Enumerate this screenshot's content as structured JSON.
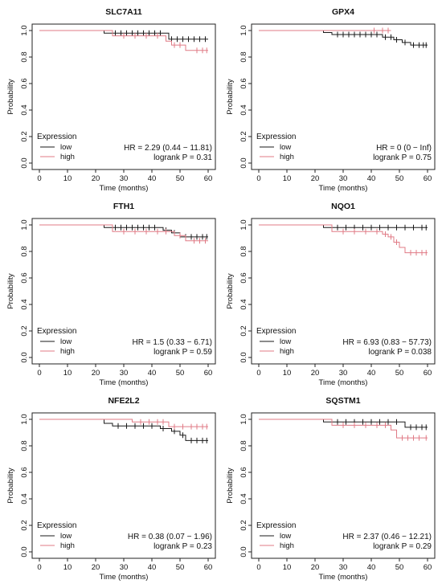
{
  "colors": {
    "low": "#1a1a1a",
    "high": "#e07b86",
    "axis": "#222222"
  },
  "chart_data": [
    {
      "type": "line",
      "title": "SLC7A11",
      "xlabel": "Time (months)",
      "ylabel": "Probability",
      "xlim": [
        0,
        60
      ],
      "ylim": [
        0,
        1
      ],
      "xticks": [
        0,
        10,
        20,
        30,
        40,
        50,
        60
      ],
      "yticks": [
        0.0,
        0.2,
        0.4,
        0.6,
        0.8,
        1.0
      ],
      "legend_title": "Expression",
      "series": [
        {
          "name": "low",
          "color": "#1a1a1a",
          "steps": [
            [
              0,
              1.0
            ],
            [
              23,
              0.98
            ],
            [
              46,
              0.935
            ],
            [
              60,
              0.935
            ]
          ],
          "censor": [
            [
              27,
              0.98
            ],
            [
              29,
              0.98
            ],
            [
              31,
              0.98
            ],
            [
              33,
              0.98
            ],
            [
              35,
              0.98
            ],
            [
              37,
              0.98
            ],
            [
              39,
              0.98
            ],
            [
              41,
              0.98
            ],
            [
              43,
              0.98
            ],
            [
              47,
              0.935
            ],
            [
              49,
              0.935
            ],
            [
              51,
              0.935
            ],
            [
              53,
              0.935
            ],
            [
              55,
              0.935
            ],
            [
              57,
              0.935
            ],
            [
              59,
              0.935
            ]
          ]
        },
        {
          "name": "high",
          "color": "#e07b86",
          "steps": [
            [
              0,
              1.0
            ],
            [
              26,
              0.96
            ],
            [
              45,
              0.92
            ],
            [
              47,
              0.89
            ],
            [
              52,
              0.85
            ],
            [
              60,
              0.85
            ]
          ],
          "censor": [
            [
              30,
              0.96
            ],
            [
              34,
              0.96
            ],
            [
              38,
              0.96
            ],
            [
              42,
              0.96
            ],
            [
              48,
              0.89
            ],
            [
              50,
              0.89
            ],
            [
              56,
              0.85
            ],
            [
              58,
              0.85
            ],
            [
              59.5,
              0.85
            ]
          ]
        }
      ],
      "annotation": [
        "HR = 2.29 (0.44 − 11.81)",
        "logrank P = 0.31"
      ]
    },
    {
      "type": "line",
      "title": "GPX4",
      "xlabel": "Time (months)",
      "ylabel": "Probability",
      "xlim": [
        0,
        60
      ],
      "ylim": [
        0,
        1
      ],
      "xticks": [
        0,
        10,
        20,
        30,
        40,
        50,
        60
      ],
      "yticks": [
        0.0,
        0.2,
        0.4,
        0.6,
        0.8,
        1.0
      ],
      "legend_title": "Expression",
      "series": [
        {
          "name": "low",
          "color": "#1a1a1a",
          "steps": [
            [
              0,
              1.0
            ],
            [
              23,
              0.985
            ],
            [
              26,
              0.97
            ],
            [
              44,
              0.95
            ],
            [
              48,
              0.93
            ],
            [
              51,
              0.91
            ],
            [
              54,
              0.89
            ],
            [
              60,
              0.89
            ]
          ],
          "censor": [
            [
              28,
              0.97
            ],
            [
              30,
              0.97
            ],
            [
              32,
              0.97
            ],
            [
              34,
              0.97
            ],
            [
              36,
              0.97
            ],
            [
              38,
              0.97
            ],
            [
              40,
              0.97
            ],
            [
              42,
              0.97
            ],
            [
              45,
              0.95
            ],
            [
              47,
              0.95
            ],
            [
              49,
              0.93
            ],
            [
              52,
              0.91
            ],
            [
              55,
              0.89
            ],
            [
              57,
              0.89
            ],
            [
              58.5,
              0.89
            ],
            [
              59.5,
              0.89
            ]
          ]
        },
        {
          "name": "high",
          "color": "#e07b86",
          "steps": [
            [
              0,
              1.0
            ],
            [
              47,
              1.0
            ]
          ],
          "censor": [
            [
              41,
              1.0
            ],
            [
              44,
              1.0
            ],
            [
              46,
              1.0
            ]
          ]
        }
      ],
      "annotation": [
        "HR = 0 (0 − Inf)",
        "logrank P = 0.75"
      ]
    },
    {
      "type": "line",
      "title": "FTH1",
      "xlabel": "Time (months)",
      "ylabel": "Probability",
      "xlim": [
        0,
        60
      ],
      "ylim": [
        0,
        1
      ],
      "xticks": [
        0,
        10,
        20,
        30,
        40,
        50,
        60
      ],
      "yticks": [
        0.0,
        0.2,
        0.4,
        0.6,
        0.8,
        1.0
      ],
      "legend_title": "Expression",
      "series": [
        {
          "name": "low",
          "color": "#1a1a1a",
          "steps": [
            [
              0,
              1.0
            ],
            [
              23,
              0.98
            ],
            [
              44,
              0.96
            ],
            [
              47,
              0.94
            ],
            [
              50,
              0.91
            ],
            [
              60,
              0.91
            ]
          ],
          "censor": [
            [
              27,
              0.98
            ],
            [
              29,
              0.98
            ],
            [
              31,
              0.98
            ],
            [
              33,
              0.98
            ],
            [
              35,
              0.98
            ],
            [
              37,
              0.98
            ],
            [
              39,
              0.98
            ],
            [
              41,
              0.98
            ],
            [
              45,
              0.96
            ],
            [
              48,
              0.94
            ],
            [
              52,
              0.91
            ],
            [
              54,
              0.91
            ],
            [
              56,
              0.91
            ],
            [
              58,
              0.91
            ],
            [
              59.5,
              0.91
            ]
          ]
        },
        {
          "name": "high",
          "color": "#e07b86",
          "steps": [
            [
              0,
              1.0
            ],
            [
              26,
              0.95
            ],
            [
              48,
              0.92
            ],
            [
              52,
              0.88
            ],
            [
              60,
              0.88
            ]
          ],
          "censor": [
            [
              30,
              0.95
            ],
            [
              34,
              0.95
            ],
            [
              38,
              0.95
            ],
            [
              42,
              0.95
            ],
            [
              45,
              0.95
            ],
            [
              50,
              0.92
            ],
            [
              55,
              0.88
            ],
            [
              57,
              0.88
            ],
            [
              59,
              0.88
            ]
          ]
        }
      ],
      "annotation": [
        "HR = 1.5 (0.33 − 6.71)",
        "logrank P = 0.59"
      ]
    },
    {
      "type": "line",
      "title": "NQO1",
      "xlabel": "Time (months)",
      "ylabel": "Probability",
      "xlim": [
        0,
        60
      ],
      "ylim": [
        0,
        1
      ],
      "xticks": [
        0,
        10,
        20,
        30,
        40,
        50,
        60
      ],
      "yticks": [
        0.0,
        0.2,
        0.4,
        0.6,
        0.8,
        1.0
      ],
      "legend_title": "Expression",
      "series": [
        {
          "name": "low",
          "color": "#1a1a1a",
          "steps": [
            [
              0,
              1.0
            ],
            [
              23,
              0.98
            ],
            [
              60,
              0.98
            ]
          ],
          "censor": [
            [
              28,
              0.98
            ],
            [
              31,
              0.98
            ],
            [
              34,
              0.98
            ],
            [
              37,
              0.98
            ],
            [
              40,
              0.98
            ],
            [
              43,
              0.98
            ],
            [
              46,
              0.98
            ],
            [
              49,
              0.98
            ],
            [
              52,
              0.98
            ],
            [
              55,
              0.98
            ],
            [
              58,
              0.98
            ],
            [
              59.5,
              0.98
            ]
          ]
        },
        {
          "name": "high",
          "color": "#e07b86",
          "steps": [
            [
              0,
              1.0
            ],
            [
              26,
              0.95
            ],
            [
              44,
              0.93
            ],
            [
              46,
              0.91
            ],
            [
              48,
              0.87
            ],
            [
              50,
              0.83
            ],
            [
              52,
              0.79
            ],
            [
              60,
              0.79
            ]
          ],
          "censor": [
            [
              30,
              0.95
            ],
            [
              34,
              0.95
            ],
            [
              38,
              0.95
            ],
            [
              42,
              0.95
            ],
            [
              45,
              0.93
            ],
            [
              47,
              0.91
            ],
            [
              49,
              0.87
            ],
            [
              54,
              0.79
            ],
            [
              56,
              0.79
            ],
            [
              58,
              0.79
            ],
            [
              59.5,
              0.79
            ]
          ]
        }
      ],
      "annotation": [
        "HR = 6.93 (0.83 − 57.73)",
        "logrank P = 0.038"
      ]
    },
    {
      "type": "line",
      "title": "NFE2L2",
      "xlabel": "Time (months)",
      "ylabel": "Probability",
      "xlim": [
        0,
        60
      ],
      "ylim": [
        0,
        1
      ],
      "xticks": [
        0,
        10,
        20,
        30,
        40,
        50,
        60
      ],
      "yticks": [
        0.0,
        0.2,
        0.4,
        0.6,
        0.8,
        1.0
      ],
      "legend_title": "Expression",
      "series": [
        {
          "name": "low",
          "color": "#1a1a1a",
          "steps": [
            [
              0,
              1.0
            ],
            [
              23,
              0.97
            ],
            [
              26,
              0.95
            ],
            [
              43,
              0.93
            ],
            [
              47,
              0.91
            ],
            [
              50,
              0.88
            ],
            [
              52,
              0.84
            ],
            [
              60,
              0.84
            ]
          ],
          "censor": [
            [
              28,
              0.95
            ],
            [
              31,
              0.95
            ],
            [
              34,
              0.95
            ],
            [
              37,
              0.95
            ],
            [
              40,
              0.95
            ],
            [
              44,
              0.93
            ],
            [
              48,
              0.91
            ],
            [
              51,
              0.88
            ],
            [
              54,
              0.84
            ],
            [
              56,
              0.84
            ],
            [
              58,
              0.84
            ],
            [
              59.5,
              0.84
            ]
          ]
        },
        {
          "name": "high",
          "color": "#e07b86",
          "steps": [
            [
              0,
              1.0
            ],
            [
              33,
              0.98
            ],
            [
              46,
              0.945
            ],
            [
              60,
              0.945
            ]
          ],
          "censor": [
            [
              36,
              0.98
            ],
            [
              39,
              0.98
            ],
            [
              42,
              0.98
            ],
            [
              44,
              0.98
            ],
            [
              48,
              0.945
            ],
            [
              51,
              0.945
            ],
            [
              54,
              0.945
            ],
            [
              56,
              0.945
            ],
            [
              58,
              0.945
            ],
            [
              59.5,
              0.945
            ]
          ]
        }
      ],
      "annotation": [
        "HR = 0.38 (0.07 − 1.96)",
        "logrank P = 0.23"
      ]
    },
    {
      "type": "line",
      "title": "SQSTM1",
      "xlabel": "Time (months)",
      "ylabel": "Probability",
      "xlim": [
        0,
        60
      ],
      "ylim": [
        0,
        1
      ],
      "xticks": [
        0,
        10,
        20,
        30,
        40,
        50,
        60
      ],
      "yticks": [
        0.0,
        0.2,
        0.4,
        0.6,
        0.8,
        1.0
      ],
      "legend_title": "Expression",
      "series": [
        {
          "name": "low",
          "color": "#1a1a1a",
          "steps": [
            [
              0,
              1.0
            ],
            [
              23,
              0.98
            ],
            [
              52,
              0.94
            ],
            [
              60,
              0.94
            ]
          ],
          "censor": [
            [
              28,
              0.98
            ],
            [
              31,
              0.98
            ],
            [
              34,
              0.98
            ],
            [
              37,
              0.98
            ],
            [
              40,
              0.98
            ],
            [
              43,
              0.98
            ],
            [
              46,
              0.98
            ],
            [
              49,
              0.98
            ],
            [
              54,
              0.94
            ],
            [
              56,
              0.94
            ],
            [
              58,
              0.94
            ],
            [
              59.5,
              0.94
            ]
          ]
        },
        {
          "name": "high",
          "color": "#e07b86",
          "steps": [
            [
              0,
              1.0
            ],
            [
              26,
              0.955
            ],
            [
              47,
              0.92
            ],
            [
              49,
              0.86
            ],
            [
              60,
              0.86
            ]
          ],
          "censor": [
            [
              30,
              0.955
            ],
            [
              34,
              0.955
            ],
            [
              38,
              0.955
            ],
            [
              42,
              0.955
            ],
            [
              45,
              0.955
            ],
            [
              51,
              0.86
            ],
            [
              53,
              0.86
            ],
            [
              55,
              0.86
            ],
            [
              57,
              0.86
            ],
            [
              59.5,
              0.86
            ]
          ]
        }
      ],
      "annotation": [
        "HR = 2.37 (0.46 − 12.21)",
        "logrank P = 0.29"
      ]
    }
  ]
}
